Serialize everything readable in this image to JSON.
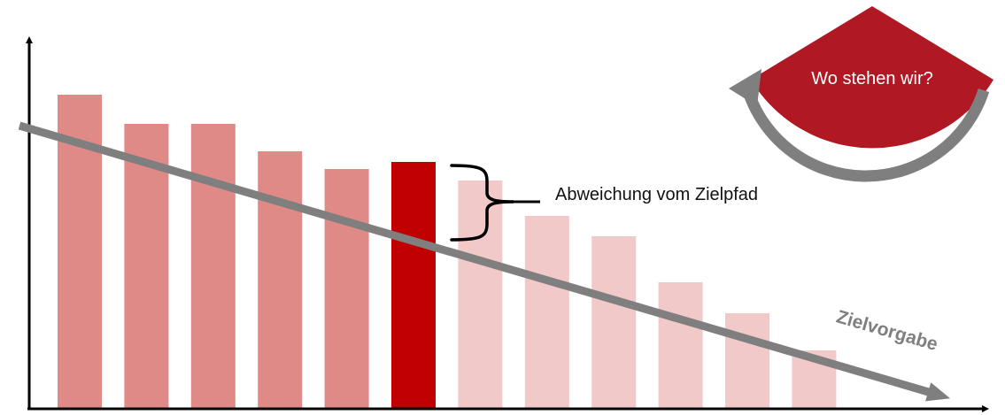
{
  "chart_data": {
    "type": "bar",
    "title": "",
    "xlabel": "",
    "ylabel": "",
    "ylim": [
      0,
      360
    ],
    "values": [
      355,
      322,
      322,
      291,
      271,
      279,
      258,
      218,
      195,
      143,
      108,
      66
    ],
    "highlight_index": 5,
    "bar_color_past": "#e08a88",
    "bar_color_current": "#c00000",
    "bar_color_future": "#f2c9c9",
    "target_path": {
      "start": 320,
      "end": 18,
      "label": "Zielvorgabe",
      "color": "#7f7f7f"
    },
    "deviation_label": "Abweichung vom Zielpfad",
    "grid": false,
    "legend": "none"
  },
  "badge": {
    "label": "Wo stehen wir?",
    "fill": "#b01823",
    "arrow_color": "#7f7f7f"
  }
}
